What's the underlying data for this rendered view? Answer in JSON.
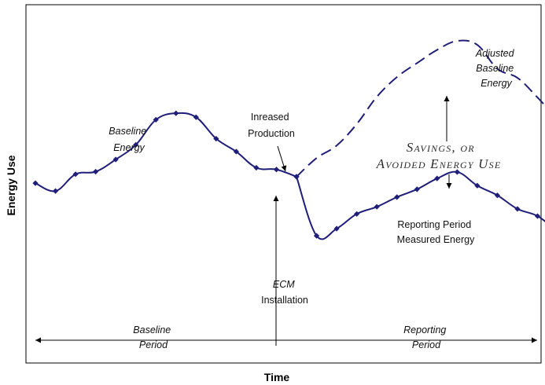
{
  "chart_data": {
    "type": "line",
    "title": "",
    "xlabel": "Time",
    "ylabel": "Energy Use",
    "grid": false,
    "legend": "none",
    "x": [
      0,
      1,
      2,
      3,
      4,
      5,
      6,
      7,
      8,
      9,
      10,
      11,
      12,
      13,
      14,
      15,
      16,
      17,
      18,
      19,
      20,
      21,
      22,
      23,
      24,
      25,
      26
    ],
    "ylim": [
      0,
      100
    ],
    "series": [
      {
        "key": "baseline",
        "style": "solid-markers",
        "color": "#1f1f7a",
        "x": [
          0,
          1,
          2,
          3,
          4,
          5,
          6,
          7,
          8,
          9,
          10,
          11,
          12,
          13
        ],
        "values": [
          50.2,
          48.0,
          52.7,
          53.4,
          56.8,
          60.9,
          67.9,
          69.7,
          68.6,
          62.6,
          59.0,
          54.5,
          54.0,
          52.0
        ]
      },
      {
        "key": "reporting",
        "style": "solid-markers",
        "color": "#1f1f7a",
        "x": [
          13,
          14,
          15,
          16,
          17,
          18,
          19,
          20,
          21,
          22,
          23,
          24,
          25,
          26
        ],
        "values": [
          52.0,
          35.5,
          37.5,
          41.6,
          43.6,
          46.3,
          48.5,
          51.5,
          53.3,
          49.5,
          46.8,
          43.0,
          41.0,
          36.7
        ]
      },
      {
        "key": "adjusted",
        "style": "dashed",
        "color": "#1f1f7a",
        "x": [
          13,
          14,
          15,
          16,
          17,
          18,
          19,
          20,
          21,
          22,
          23,
          24,
          25,
          26
        ],
        "values": [
          52.0,
          57.2,
          60.7,
          66.7,
          74.3,
          79.8,
          83.7,
          87.4,
          89.9,
          88.8,
          82.1,
          79.6,
          74.1,
          68.0
        ]
      }
    ],
    "annotations": {
      "baseline_energy": [
        "Baseline",
        "Energy"
      ],
      "increased_production": [
        "Inreased",
        "Production"
      ],
      "adjusted_baseline": [
        "Adjusted",
        "Baseline",
        "Energy"
      ],
      "savings": [
        "Savings, or",
        "Avoided Energy Use"
      ],
      "reporting_measured": [
        "Reporting Period",
        "Measured Energy"
      ],
      "ecm": [
        "ECM",
        "Installation"
      ],
      "baseline_period": [
        "Baseline",
        "Period"
      ],
      "reporting_period": [
        "Reporting",
        "Period"
      ]
    }
  }
}
